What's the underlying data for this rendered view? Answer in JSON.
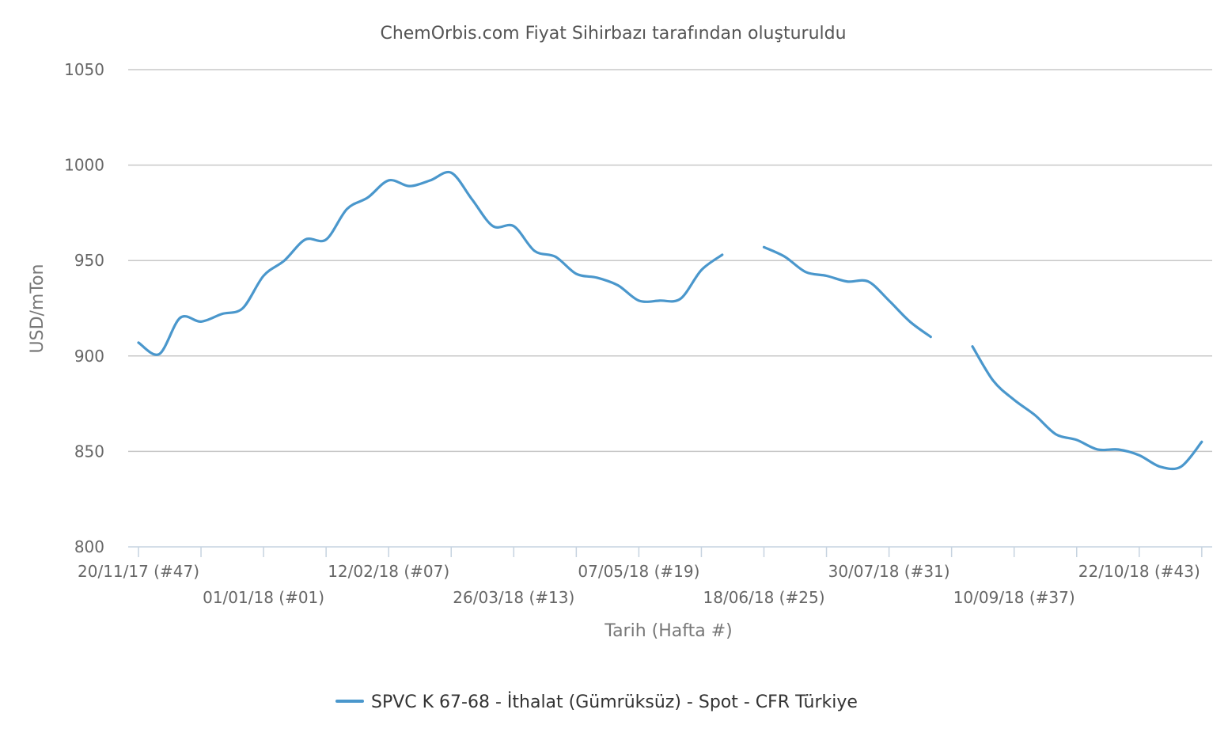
{
  "chart_data": {
    "type": "line",
    "title": "ChemOrbis.com Fiyat Sihirbazı tarafından oluşturuldu",
    "xlabel": "Tarih (Hafta #)",
    "ylabel": "USD/mTon",
    "ylim": [
      800,
      1050
    ],
    "yticks": [
      800,
      850,
      900,
      950,
      1000,
      1050
    ],
    "grid": true,
    "legend_position": "bottom",
    "color": "#4a97cc",
    "xtick_labels": [
      "20/11/17 (#47)",
      "01/01/18 (#01)",
      "12/02/18 (#07)",
      "26/03/18 (#13)",
      "07/05/18 (#19)",
      "18/06/18 (#25)",
      "30/07/18 (#31)",
      "10/09/18 (#37)",
      "22/10/18 (#43)"
    ],
    "x": [
      "20/11/17",
      "27/11/17",
      "04/12/17",
      "11/12/17",
      "18/12/17",
      "25/12/17",
      "01/01/18",
      "08/01/18",
      "15/01/18",
      "22/01/18",
      "29/01/18",
      "05/02/18",
      "12/02/18",
      "19/02/18",
      "26/02/18",
      "05/03/18",
      "12/03/18",
      "19/03/18",
      "26/03/18",
      "02/04/18",
      "09/04/18",
      "16/04/18",
      "23/04/18",
      "30/04/18",
      "07/05/18",
      "14/05/18",
      "21/05/18",
      "28/05/18",
      "04/06/18",
      "11/06/18",
      "18/06/18",
      "25/06/18",
      "02/07/18",
      "09/07/18",
      "16/07/18",
      "23/07/18",
      "30/07/18",
      "06/08/18",
      "13/08/18",
      "20/08/18",
      "27/08/18",
      "03/09/18",
      "10/09/18",
      "17/09/18",
      "24/09/18",
      "01/10/18",
      "08/10/18",
      "15/10/18",
      "22/10/18",
      "29/10/18",
      "05/11/18",
      "12/11/18"
    ],
    "series": [
      {
        "name": "SPVC K 67-68 - İthalat (Gümrüksüz) - Spot - CFR Türkiye",
        "values": [
          907,
          901,
          920,
          918,
          922,
          925,
          942,
          950,
          961,
          961,
          977,
          983,
          992,
          989,
          992,
          996,
          982,
          968,
          968,
          955,
          952,
          943,
          941,
          937,
          929,
          929,
          930,
          945,
          953,
          null,
          957,
          952,
          944,
          942,
          939,
          939,
          929,
          918,
          910,
          null,
          905,
          887,
          877,
          869,
          859,
          856,
          851,
          851,
          848,
          842,
          842,
          855
        ]
      }
    ]
  }
}
